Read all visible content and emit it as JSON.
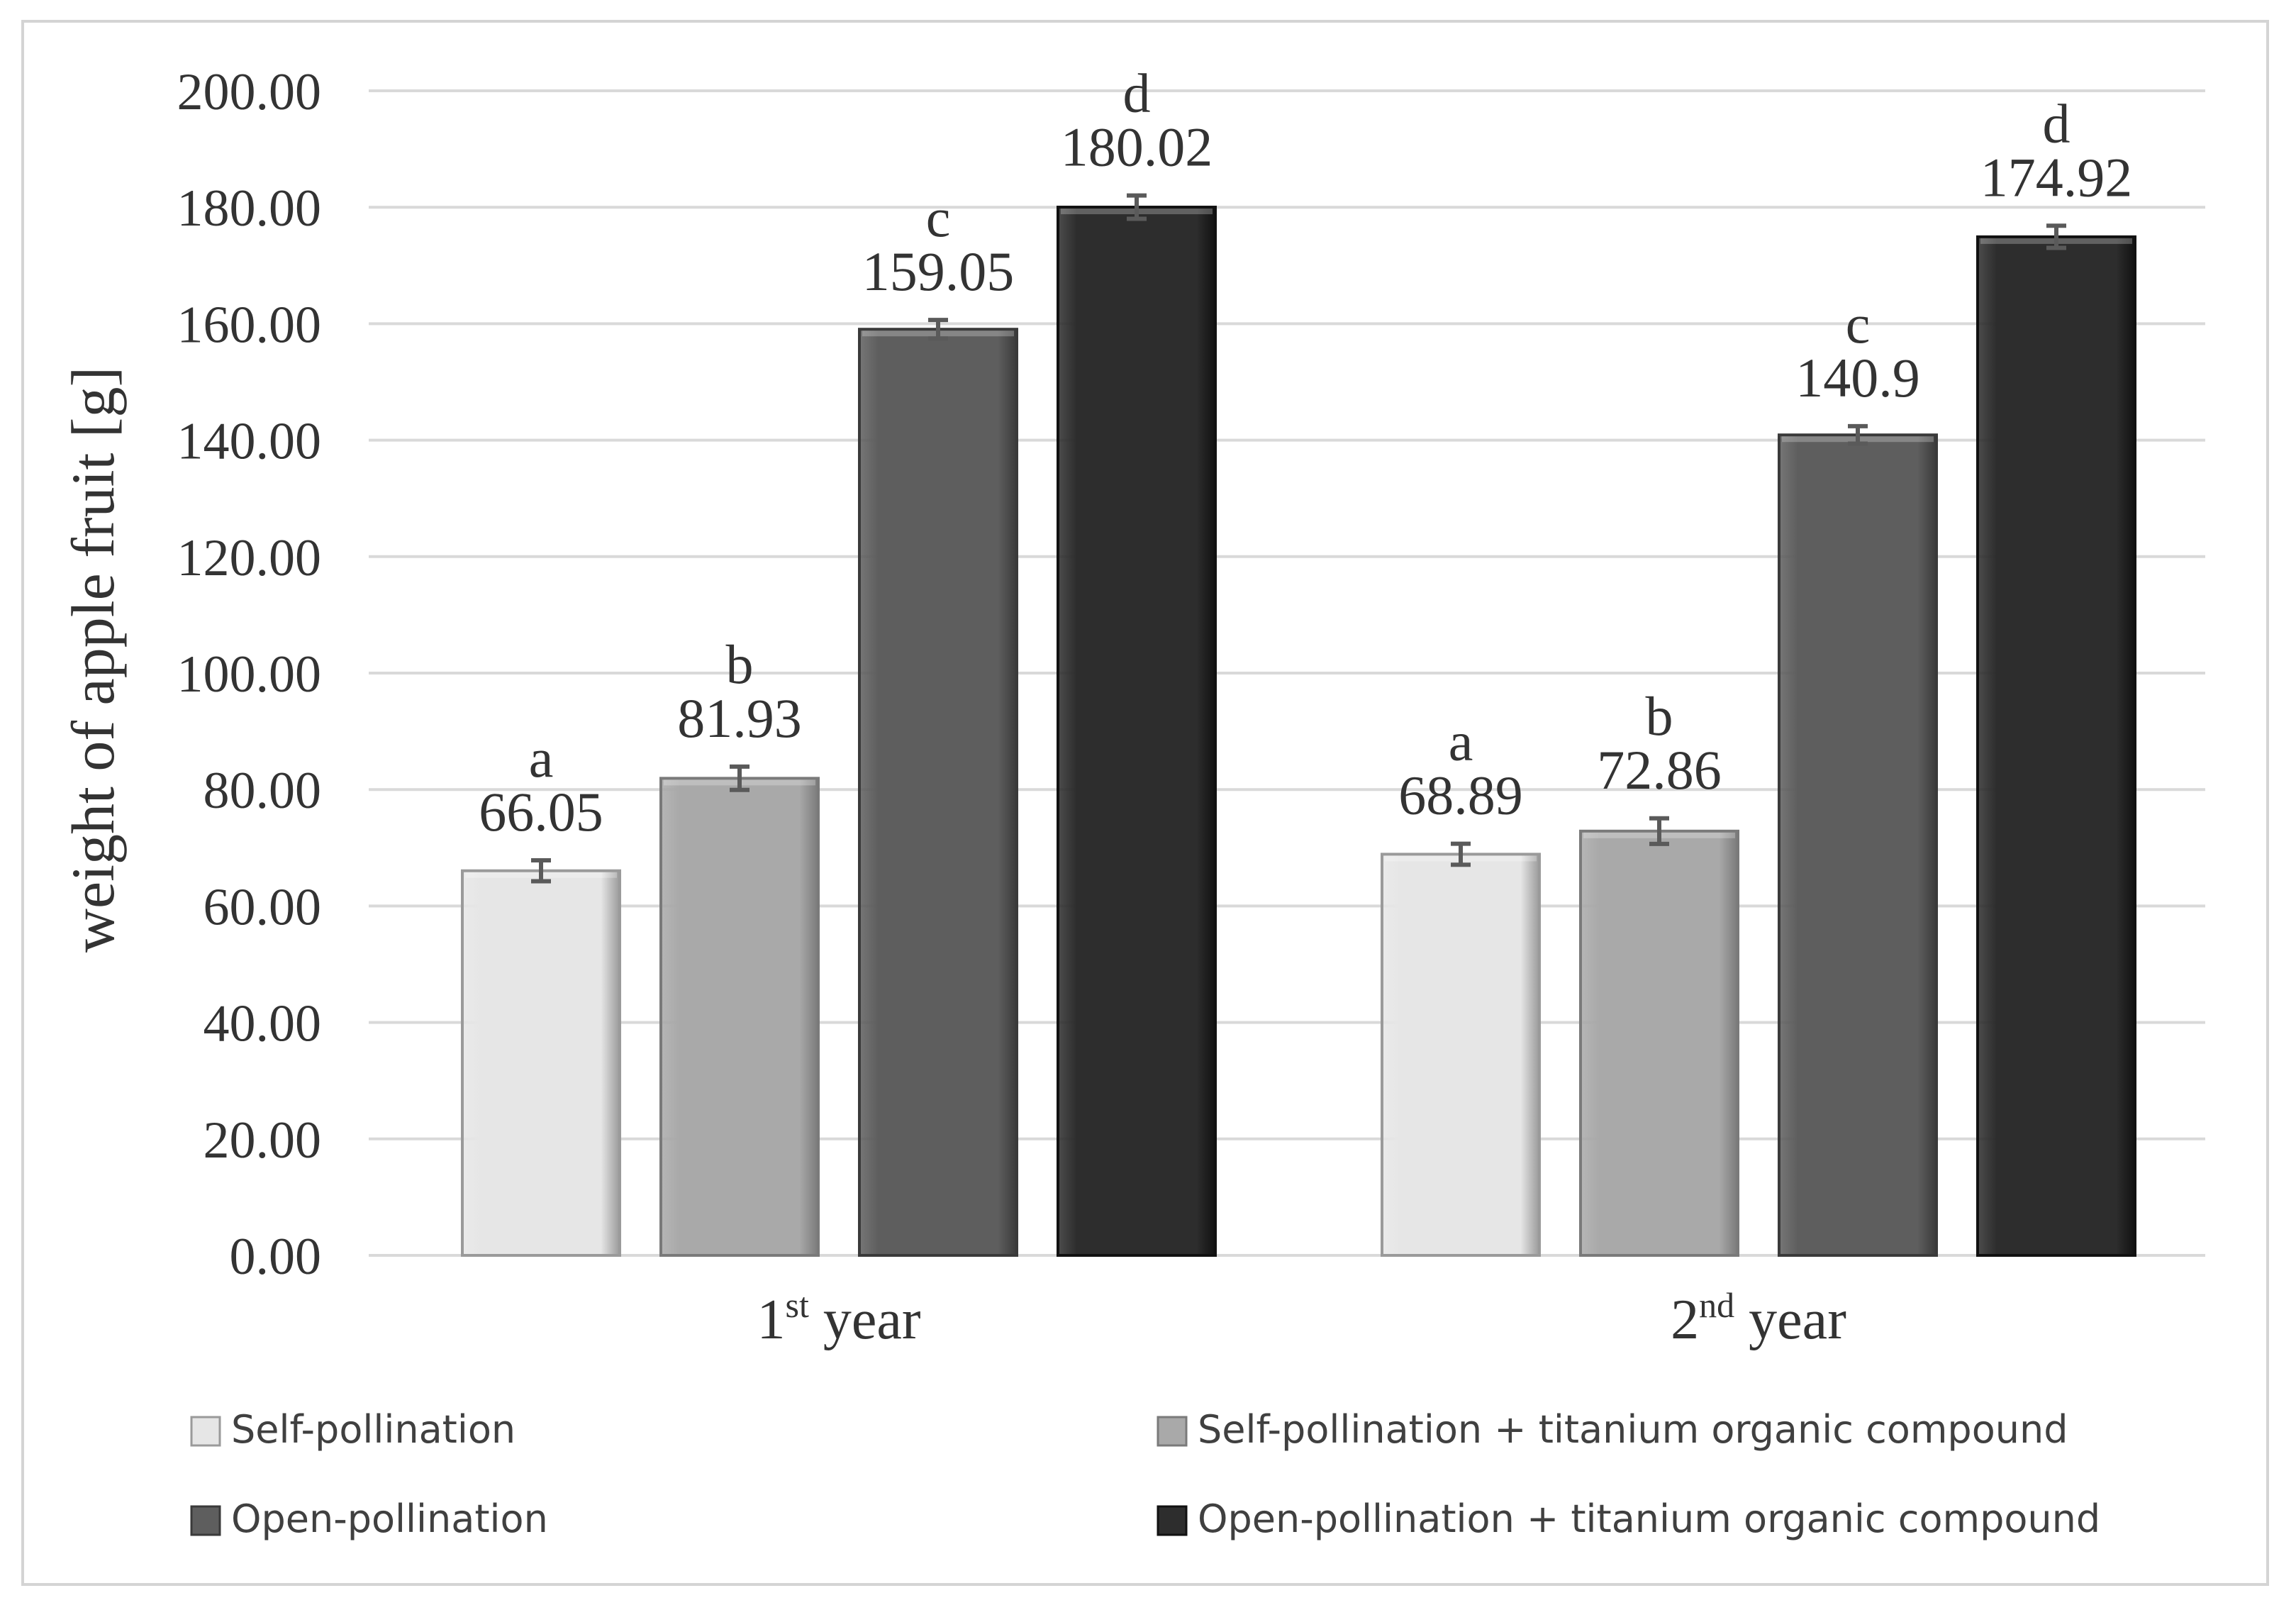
{
  "chart_data": {
    "type": "bar",
    "title": "",
    "ylabel": "weight of apple fruit [g]",
    "xlabel": "",
    "ylim": [
      0,
      200
    ],
    "yticks": [
      "0.00",
      "20.00",
      "40.00",
      "60.00",
      "80.00",
      "100.00",
      "120.00",
      "140.00",
      "160.00",
      "180.00",
      "200.00"
    ],
    "grid": true,
    "legend_position": "bottom",
    "categories": [
      {
        "base": "1",
        "sup": "st",
        "rest": " year"
      },
      {
        "base": "2",
        "sup": "nd",
        "rest": " year"
      }
    ],
    "series": [
      {
        "name": "Self-pollination",
        "color": "#e6e6e6",
        "stroke": "#9a9a9a",
        "values": [
          66.05,
          68.89
        ],
        "labels": [
          "66.05",
          "68.89"
        ],
        "letters": [
          "a",
          "a"
        ],
        "error": [
          1.8,
          1.8
        ]
      },
      {
        "name": "Self-pollination + titanium organic compound",
        "color": "#a9a9a9",
        "stroke": "#7a7a7a",
        "values": [
          81.93,
          72.86
        ],
        "labels": [
          "81.93",
          "72.86"
        ],
        "letters": [
          "b",
          "b"
        ],
        "error": [
          2.0,
          2.2
        ]
      },
      {
        "name": "Open-pollination",
        "color": "#5e5e5e",
        "stroke": "#3a3a3a",
        "values": [
          159.05,
          140.9
        ],
        "labels": [
          "159.05",
          "140.9"
        ],
        "letters": [
          "c",
          "c"
        ],
        "error": [
          1.6,
          1.5
        ]
      },
      {
        "name": "Open-pollination + titanium organic compound",
        "color": "#2d2d2d",
        "stroke": "#111111",
        "values": [
          180.02,
          174.92
        ],
        "labels": [
          "180.02",
          "174.92"
        ],
        "letters": [
          "d",
          "d"
        ],
        "error": [
          2.0,
          1.9
        ]
      }
    ]
  }
}
